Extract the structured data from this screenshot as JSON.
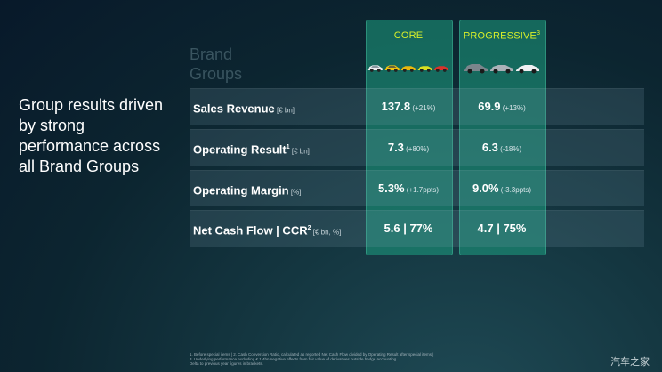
{
  "headline": "Group results driven by strong performance across all Brand Groups",
  "section_title": "Brand Groups",
  "columns": {
    "core": "CORE",
    "progressive": "PROGRESSIVE",
    "progressive_sup": "3"
  },
  "rows": [
    {
      "label": "Sales Revenue",
      "sup": "",
      "unit": " [€ bn]",
      "core": "137.8",
      "core_change": " (+21%)",
      "prog": "69.9",
      "prog_change": " (+13%)"
    },
    {
      "label": "Operating Result",
      "sup": "1",
      "unit": " [€ bn]",
      "core": "7.3",
      "core_change": " (+80%)",
      "prog": "6.3",
      "prog_change": " (-18%)"
    },
    {
      "label": "Operating Margin",
      "sup": "",
      "unit": " [%]",
      "core": "5.3%",
      "core_change": " (+1.7ppts)",
      "prog": "9.0%",
      "prog_change": " (-3.3ppts)"
    },
    {
      "label": "Net Cash Flow | CCR",
      "sup": "2",
      "unit": " [€ bn, %]",
      "core": "5.6 | 77%",
      "core_change": "",
      "prog": "4.7 | 75%",
      "prog_change": ""
    }
  ],
  "footnotes": [
    "1. Before special items | 2. Cash Conversion Ratio, calculated as reported Net Cash Flow divided by Operating Result after special items |",
    "3. Underlying performance excluding € 1.4bn negative effects from fair value of derivatives outside hedge accounting",
    "Delta to previous year figures in brackets."
  ],
  "watermark": "汽车之家",
  "colors": {
    "accent_yellow": "#d8ef2a",
    "highlight_teal": "#1ea082",
    "background": "#0c2530"
  },
  "icons": {
    "core_cars": [
      "white-car",
      "yellow-car",
      "yellow-car",
      "yellow-car",
      "red-car"
    ],
    "progressive_cars": [
      "grey-car",
      "silver-car",
      "white-car"
    ]
  }
}
